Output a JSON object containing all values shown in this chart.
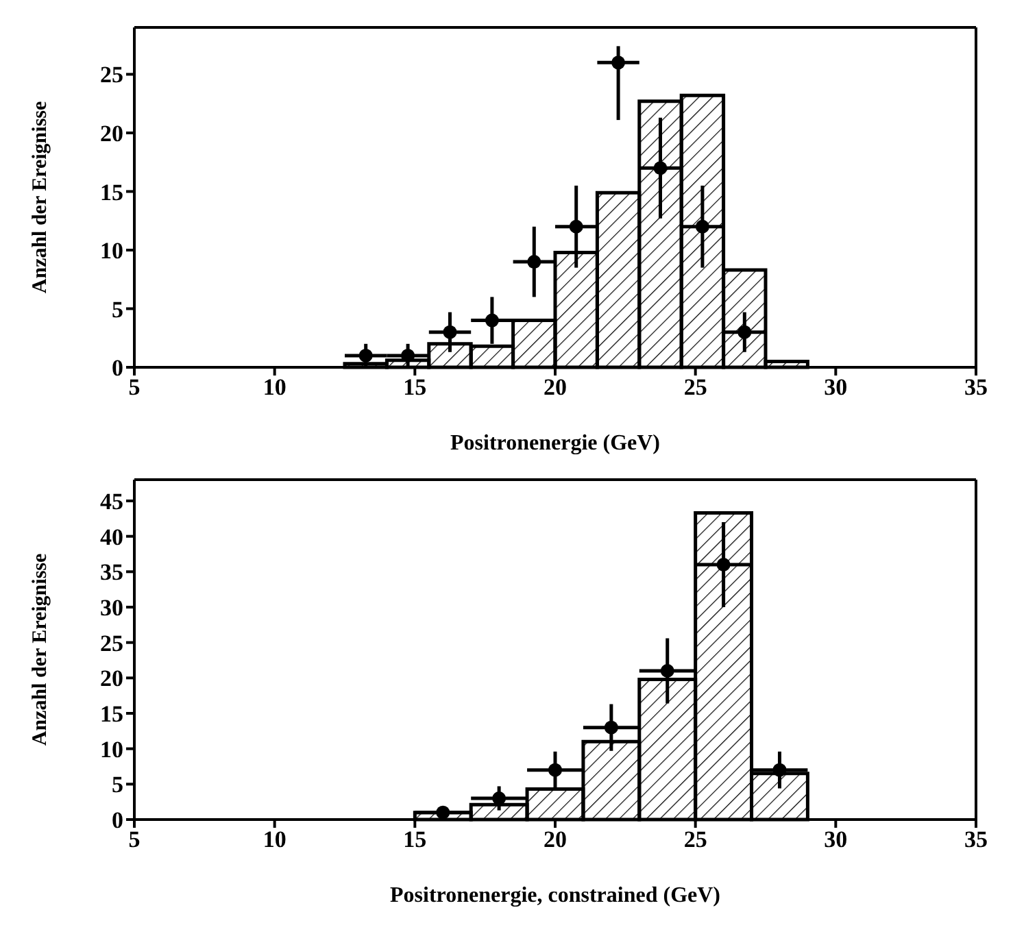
{
  "chart_data": [
    {
      "type": "histogram",
      "xlabel": "Positronenergie (GeV)",
      "ylabel": "Anzahl der Ereignisse",
      "color": "#000000",
      "bins": [
        12.5,
        14,
        15.5,
        17,
        18.5,
        20,
        21.5,
        23,
        24.5,
        26,
        27.5,
        29
      ],
      "values": [
        0.3,
        0.6,
        2,
        1.8,
        4,
        9.8,
        14.9,
        22.7,
        23.2,
        8.3,
        0.5
      ],
      "series": [
        {
          "type": "scatter",
          "color": "#000000",
          "marker": "circle",
          "x": [
            13.25,
            14.75,
            16.25,
            17.75,
            19.25,
            20.75,
            22.25,
            23.75,
            25.25,
            26.75
          ],
          "values": [
            1,
            1,
            3,
            4,
            9,
            12,
            26,
            17,
            12,
            3
          ],
          "errors": [
            1,
            1,
            1.7,
            2,
            3,
            3.5,
            [
              21.1,
              27.4
            ],
            4.3,
            3.5,
            1.7
          ],
          "xerrors": [
            0.75,
            0.75,
            0.75,
            0.75,
            0.75,
            0.75,
            0.75,
            0.75,
            0.75,
            0.75
          ]
        }
      ],
      "xlim": [
        5,
        35
      ],
      "xticks": [
        5,
        10,
        15,
        20,
        25,
        30,
        35
      ],
      "ylim": [
        0,
        29
      ],
      "yticks": [
        0,
        5,
        10,
        15,
        20,
        25
      ],
      "grid": false,
      "legend": false
    },
    {
      "type": "histogram",
      "xlabel": "Positronenergie, constrained (GeV)",
      "ylabel": "Anzahl der Ereignisse",
      "color": "#000000",
      "bins": [
        15,
        17,
        19,
        21,
        23,
        25,
        27,
        29
      ],
      "values": [
        1,
        2.1,
        4.3,
        11,
        19.8,
        43.3,
        6.5
      ],
      "series": [
        {
          "type": "scatter",
          "color": "#000000",
          "marker": "circle",
          "x": [
            16,
            18,
            20,
            22,
            24,
            26,
            28
          ],
          "values": [
            1,
            3,
            7,
            13,
            21,
            36,
            7
          ],
          "errors": [
            null,
            1.7,
            2.6,
            3.3,
            4.6,
            6,
            2.6
          ],
          "xerrors": [
            1,
            1,
            1,
            1,
            1,
            1,
            1
          ]
        }
      ],
      "xlim": [
        5,
        35
      ],
      "xticks": [
        5,
        10,
        15,
        20,
        25,
        30,
        35
      ],
      "ylim": [
        0,
        48
      ],
      "yticks": [
        0,
        5,
        10,
        15,
        20,
        25,
        30,
        35,
        40,
        45
      ],
      "grid": false,
      "legend": false
    }
  ]
}
